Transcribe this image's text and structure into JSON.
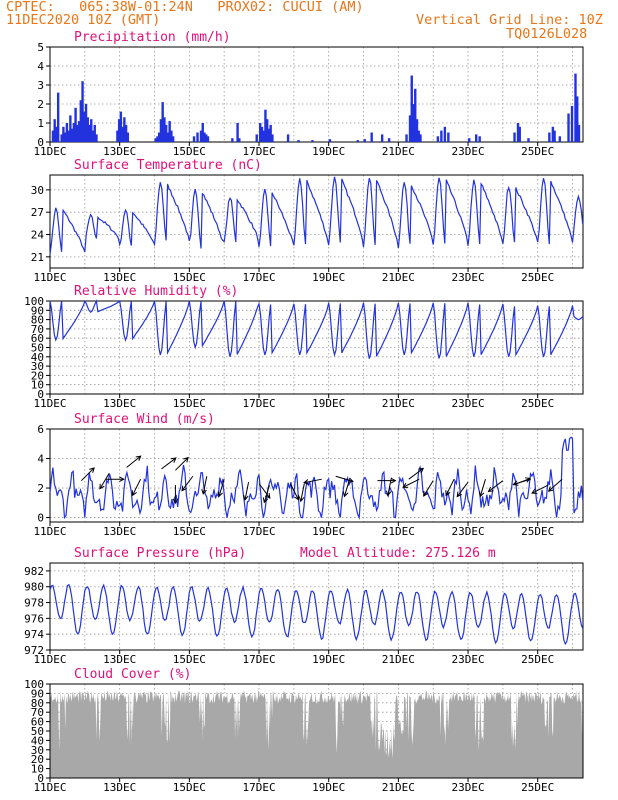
{
  "header": {
    "line1": "CPTEC:   065:38W-01:24N   PROX02: CUCUI (AM)",
    "line2": "11DEC2020 10Z (GMT)",
    "grid_note": "Vertical Grid Line: 10Z",
    "run_id": "TQ0126L028"
  },
  "colors": {
    "header": "#e8761a",
    "title": "#e0107a",
    "series": "#2233dd",
    "arrow": "#000000",
    "cloud": "#a8a8a8",
    "grid": "#999999"
  },
  "x_axis": {
    "tick_labels": [
      "11DEC",
      "13DEC",
      "15DEC",
      "17DEC",
      "19DEC",
      "21DEC",
      "23DEC",
      "25DEC"
    ],
    "tick_days": [
      0,
      2,
      4,
      6,
      8,
      10,
      12,
      14
    ],
    "range_days": [
      0,
      15.3
    ],
    "grid_every_days": 1
  },
  "chart_data": [
    {
      "type": "bar",
      "title": "Precipitation (mm/h)",
      "ylim": [
        0,
        5
      ],
      "yticks": [
        0,
        1,
        2,
        3,
        4,
        5
      ],
      "bars": [
        [
          0.05,
          0.6
        ],
        [
          0.1,
          1.2
        ],
        [
          0.15,
          0.8
        ],
        [
          0.2,
          2.6
        ],
        [
          0.3,
          0.4
        ],
        [
          0.35,
          0.8
        ],
        [
          0.4,
          0.5
        ],
        [
          0.45,
          1.0
        ],
        [
          0.5,
          0.6
        ],
        [
          0.55,
          1.4
        ],
        [
          0.6,
          0.7
        ],
        [
          0.65,
          1.0
        ],
        [
          0.7,
          1.8
        ],
        [
          0.75,
          0.9
        ],
        [
          0.8,
          1.1
        ],
        [
          0.85,
          2.2
        ],
        [
          0.9,
          3.2
        ],
        [
          0.95,
          1.6
        ],
        [
          1.0,
          2.0
        ],
        [
          1.05,
          1.3
        ],
        [
          1.1,
          0.9
        ],
        [
          1.15,
          1.2
        ],
        [
          1.2,
          0.6
        ],
        [
          1.25,
          0.9
        ],
        [
          1.3,
          0.4
        ],
        [
          1.9,
          0.6
        ],
        [
          1.95,
          1.2
        ],
        [
          2.0,
          1.6
        ],
        [
          2.05,
          0.8
        ],
        [
          2.1,
          1.3
        ],
        [
          2.15,
          0.9
        ],
        [
          2.2,
          0.5
        ],
        [
          3.0,
          0.2
        ],
        [
          3.05,
          0.3
        ],
        [
          3.1,
          0.5
        ],
        [
          3.15,
          1.2
        ],
        [
          3.2,
          2.1
        ],
        [
          3.25,
          1.3
        ],
        [
          3.3,
          0.9
        ],
        [
          3.35,
          0.5
        ],
        [
          3.4,
          1.1
        ],
        [
          3.45,
          0.6
        ],
        [
          3.5,
          0.3
        ],
        [
          4.1,
          0.3
        ],
        [
          4.2,
          0.5
        ],
        [
          4.3,
          0.6
        ],
        [
          4.35,
          1.0
        ],
        [
          4.4,
          0.5
        ],
        [
          4.45,
          0.4
        ],
        [
          4.5,
          0.3
        ],
        [
          5.2,
          0.2
        ],
        [
          5.35,
          1.0
        ],
        [
          5.4,
          0.2
        ],
        [
          5.9,
          0.4
        ],
        [
          6.0,
          1.0
        ],
        [
          6.05,
          0.8
        ],
        [
          6.1,
          0.6
        ],
        [
          6.15,
          1.7
        ],
        [
          6.2,
          1.2
        ],
        [
          6.25,
          0.7
        ],
        [
          6.3,
          0.9
        ],
        [
          6.35,
          0.4
        ],
        [
          6.8,
          0.4
        ],
        [
          7.1,
          0.1
        ],
        [
          7.5,
          0.1
        ],
        [
          8.0,
          0.15
        ],
        [
          8.8,
          0.1
        ],
        [
          9.0,
          0.15
        ],
        [
          9.2,
          0.5
        ],
        [
          9.5,
          0.4
        ],
        [
          9.7,
          0.2
        ],
        [
          10.2,
          0.4
        ],
        [
          10.3,
          1.4
        ],
        [
          10.35,
          3.5
        ],
        [
          10.4,
          2.0
        ],
        [
          10.45,
          2.8
        ],
        [
          10.5,
          1.2
        ],
        [
          10.55,
          0.6
        ],
        [
          10.6,
          0.4
        ],
        [
          11.1,
          0.3
        ],
        [
          11.2,
          0.6
        ],
        [
          11.3,
          0.8
        ],
        [
          11.4,
          0.5
        ],
        [
          12.0,
          0.2
        ],
        [
          12.2,
          0.4
        ],
        [
          12.3,
          0.3
        ],
        [
          13.3,
          0.5
        ],
        [
          13.4,
          1.0
        ],
        [
          13.45,
          0.8
        ],
        [
          13.7,
          0.2
        ],
        [
          14.3,
          0.5
        ],
        [
          14.4,
          0.8
        ],
        [
          14.45,
          0.6
        ],
        [
          14.6,
          0.3
        ],
        [
          14.85,
          1.5
        ],
        [
          14.95,
          1.9
        ],
        [
          15.05,
          3.6
        ],
        [
          15.1,
          2.4
        ],
        [
          15.15,
          0.9
        ]
      ]
    },
    {
      "type": "line",
      "title": "Surface Temperature (nC)",
      "ylim": [
        19.5,
        32
      ],
      "yticks": [
        21,
        24,
        27,
        30
      ],
      "night_min": [
        21.5,
        23.3,
        22.5,
        23.0,
        22.2,
        23.0,
        22.2,
        22.5,
        22.7,
        22.3,
        22.7,
        22.6,
        22.6,
        22.8,
        22.8,
        24.0
      ],
      "day_max": [
        27.5,
        26.5,
        27.2,
        31.0,
        30.0,
        29.0,
        30.0,
        31.5,
        31.7,
        31.7,
        31.0,
        31.6,
        31.2,
        30.5,
        31.5,
        29.0
      ]
    },
    {
      "type": "line",
      "title": "Relative Humidity (%)",
      "ylim": [
        0,
        100
      ],
      "yticks": [
        0,
        10,
        20,
        30,
        40,
        50,
        60,
        70,
        80,
        90,
        100
      ],
      "day_min": [
        58,
        88,
        58,
        42,
        50,
        40,
        42,
        42,
        42,
        38,
        42,
        38,
        40,
        40,
        40,
        80
      ],
      "night_max": [
        100,
        100,
        100,
        100,
        100,
        100,
        97,
        97,
        98,
        98,
        98,
        98,
        97,
        95,
        95,
        84
      ]
    },
    {
      "type": "line",
      "title": "Surface Wind (m/s)",
      "ylim": [
        -0.3,
        6
      ],
      "yticks": [
        0,
        2,
        4,
        6
      ],
      "arrows": [
        [
          0.9,
          2.5,
          1.0,
          1.0
        ],
        [
          1.6,
          2.6,
          0.6,
          0.0
        ],
        [
          1.7,
          3.0,
          -0.6,
          -1.0
        ],
        [
          2.2,
          3.4,
          1.0,
          0.8
        ],
        [
          2.6,
          2.6,
          -0.4,
          -0.8
        ],
        [
          3.2,
          3.3,
          0.8,
          0.6
        ],
        [
          3.6,
          3.2,
          0.6,
          0.6
        ],
        [
          3.6,
          2.2,
          0.0,
          -1.0
        ],
        [
          4.1,
          2.8,
          -0.6,
          -0.8
        ],
        [
          4.5,
          2.8,
          -0.2,
          -1.0
        ],
        [
          5.0,
          2.6,
          -0.3,
          -1.0
        ],
        [
          5.7,
          2.4,
          -0.2,
          -1.0
        ],
        [
          6.0,
          2.3,
          0.6,
          -0.8
        ],
        [
          6.3,
          2.2,
          -0.3,
          -1.0
        ],
        [
          6.9,
          2.3,
          0.5,
          -1.0
        ],
        [
          7.3,
          2.3,
          -0.2,
          -1.0
        ],
        [
          7.8,
          2.6,
          -1.0,
          -0.2
        ],
        [
          8.2,
          2.8,
          1.0,
          -0.3
        ],
        [
          8.6,
          2.6,
          -0.3,
          -1.0
        ],
        [
          9.4,
          2.5,
          1.0,
          0.0
        ],
        [
          9.8,
          2.7,
          -0.2,
          -1.0
        ],
        [
          10.3,
          2.6,
          0.8,
          0.6
        ],
        [
          10.6,
          2.6,
          -0.8,
          -0.4
        ],
        [
          11.0,
          2.5,
          -0.5,
          -0.8
        ],
        [
          11.6,
          2.6,
          -0.4,
          -0.8
        ],
        [
          12.0,
          2.4,
          -0.6,
          -0.8
        ],
        [
          12.5,
          2.6,
          -0.3,
          -1.0
        ],
        [
          13.0,
          2.5,
          -0.8,
          -0.6
        ],
        [
          13.3,
          2.2,
          1.0,
          0.4
        ],
        [
          13.8,
          2.6,
          -1.0,
          -0.3
        ],
        [
          14.3,
          2.2,
          -1.0,
          -0.5
        ],
        [
          14.7,
          2.6,
          -0.9,
          -0.8
        ]
      ]
    },
    {
      "type": "line",
      "title": "Surface Pressure (hPa)",
      "annotation": "Model Altitude: 275.126 m",
      "ylim": [
        972,
        983
      ],
      "yticks": [
        972,
        974,
        976,
        978,
        980,
        982
      ]
    },
    {
      "type": "area",
      "title": "Cloud Cover (%)",
      "ylim": [
        0,
        100
      ],
      "yticks": [
        0,
        10,
        20,
        30,
        40,
        50,
        60,
        70,
        80,
        90,
        100
      ]
    }
  ]
}
